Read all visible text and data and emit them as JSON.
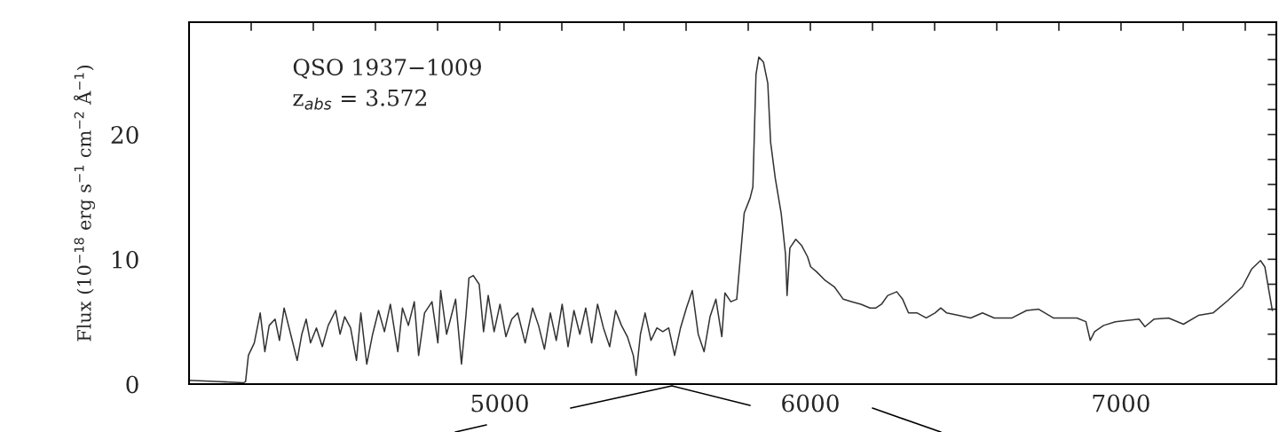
{
  "chart_data": {
    "type": "line",
    "ylabel": "Flux (10$^{−18}$ erg s$^{−1}$ cm$^{−2}$ Å$^{−1}$)",
    "annotations": [
      "QSO 1937−1009",
      "z$_{abs}$ = 3.572"
    ],
    "xlim": [
      4000,
      7500
    ],
    "ylim": [
      0,
      29
    ],
    "xticks": [
      {
        "value": 4200,
        "label": null
      },
      {
        "value": 4400,
        "label": null
      },
      {
        "value": 4600,
        "label": null
      },
      {
        "value": 4800,
        "label": null
      },
      5000,
      {
        "value": 5200,
        "label": null
      },
      {
        "value": 5400,
        "label": null
      },
      {
        "value": 5600,
        "label": null
      },
      {
        "value": 5800,
        "label": null
      },
      6000,
      {
        "value": 6200,
        "label": null
      },
      {
        "value": 6400,
        "label": null
      },
      {
        "value": 6600,
        "label": null
      },
      {
        "value": 6800,
        "label": null
      },
      7000,
      {
        "value": 7200,
        "label": null
      },
      {
        "value": 7400,
        "label": null
      }
    ],
    "yticks": [
      0,
      {
        "value": 2,
        "label": null
      },
      {
        "value": 4,
        "label": null
      },
      {
        "value": 6,
        "label": null
      },
      {
        "value": 8,
        "label": null
      },
      10,
      {
        "value": 12,
        "label": null
      },
      {
        "value": 14,
        "label": null
      },
      {
        "value": 16,
        "label": null
      },
      {
        "value": 18,
        "label": null
      },
      20,
      {
        "value": 22,
        "label": null
      },
      {
        "value": 24,
        "label": null
      },
      {
        "value": 26,
        "label": null
      },
      {
        "value": 28,
        "label": null
      }
    ],
    "grid": false,
    "series": [
      {
        "color": "#333333",
        "x": [
          4000,
          4100,
          4175,
          4182,
          4191,
          4210,
          4229,
          4244,
          4258,
          4277,
          4291,
          4306,
          4329,
          4348,
          4363,
          4377,
          4391,
          4410,
          4429,
          4448,
          4472,
          4486,
          4501,
          4520,
          4539,
          4553,
          4572,
          4591,
          4610,
          4629,
          4648,
          4672,
          4687,
          4706,
          4725,
          4739,
          4758,
          4782,
          4801,
          4810,
          4829,
          4858,
          4877,
          4891,
          4901,
          4915,
          4934,
          4948,
          4963,
          4982,
          5001,
          5020,
          5039,
          5058,
          5082,
          5106,
          5125,
          5144,
          5163,
          5182,
          5201,
          5220,
          5239,
          5258,
          5277,
          5296,
          5315,
          5334,
          5354,
          5373,
          5392,
          5411,
          5430,
          5439,
          5453,
          5468,
          5487,
          5506,
          5525,
          5544,
          5563,
          5582,
          5601,
          5620,
          5639,
          5658,
          5677,
          5696,
          5715,
          5725,
          5744,
          5763,
          5772,
          5787,
          5806,
          5815,
          5825,
          5834,
          5849,
          5863,
          5872,
          5887,
          5906,
          5920,
          5925,
          5934,
          5953,
          5972,
          5991,
          6001,
          6020,
          6048,
          6077,
          6106,
          6134,
          6163,
          6192,
          6211,
          6229,
          6249,
          6278,
          6297,
          6316,
          6344,
          6373,
          6401,
          6420,
          6439,
          6477,
          6516,
          6554,
          6592,
          6649,
          6696,
          6735,
          6782,
          6858,
          6887,
          6901,
          6915,
          6944,
          6982,
          7058,
          7077,
          7106,
          7153,
          7201,
          7249,
          7296,
          7344,
          7391,
          7420,
          7449,
          7463,
          7487
        ],
        "values": [
          0.3,
          0.2,
          0.1,
          0.2,
          2.3,
          3.3,
          5.7,
          2.6,
          4.7,
          5.2,
          3.5,
          6.1,
          3.8,
          1.9,
          4.0,
          5.2,
          3.3,
          4.5,
          3.0,
          4.7,
          5.9,
          4.0,
          5.4,
          4.5,
          1.9,
          5.7,
          1.6,
          4.0,
          5.9,
          4.2,
          6.4,
          2.6,
          6.1,
          4.7,
          6.6,
          2.3,
          5.7,
          6.6,
          3.3,
          7.5,
          4.0,
          6.8,
          1.6,
          5.4,
          8.5,
          8.7,
          8.0,
          4.2,
          7.1,
          4.2,
          6.4,
          3.8,
          5.2,
          5.7,
          3.3,
          6.1,
          4.7,
          2.8,
          5.7,
          3.5,
          6.4,
          3.0,
          5.9,
          4.0,
          6.1,
          3.3,
          6.4,
          4.5,
          3.0,
          5.9,
          4.7,
          3.8,
          2.3,
          0.7,
          4.0,
          5.7,
          3.5,
          4.5,
          4.2,
          4.5,
          2.3,
          4.5,
          6.1,
          7.5,
          4.0,
          2.6,
          5.4,
          6.8,
          3.8,
          7.3,
          6.6,
          6.8,
          9.4,
          13.7,
          14.9,
          15.8,
          24.8,
          26.2,
          25.8,
          24.1,
          19.4,
          16.5,
          13.7,
          10.4,
          7.1,
          10.9,
          11.6,
          11.1,
          10.2,
          9.4,
          9.0,
          8.3,
          7.8,
          6.8,
          6.6,
          6.4,
          6.1,
          6.1,
          6.4,
          7.1,
          7.4,
          6.8,
          5.7,
          5.7,
          5.3,
          5.7,
          6.1,
          5.7,
          5.5,
          5.3,
          5.7,
          5.3,
          5.3,
          5.9,
          6.0,
          5.3,
          5.3,
          5.0,
          3.5,
          4.2,
          4.7,
          5.0,
          5.2,
          4.6,
          5.2,
          5.3,
          4.8,
          5.5,
          5.7,
          6.7,
          7.8,
          9.2,
          9.9,
          9.4,
          5.9
        ]
      }
    ]
  }
}
